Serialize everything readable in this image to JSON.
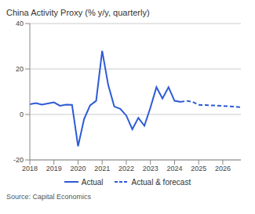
{
  "chart_data": {
    "type": "line",
    "title": "China Activity Proxy (% y/y, quarterly)",
    "source": "Source: Capital Economics",
    "x": [
      2018,
      2018.25,
      2018.5,
      2018.75,
      2019,
      2019.25,
      2019.5,
      2019.75,
      2020,
      2020.25,
      2020.5,
      2020.75,
      2021,
      2021.25,
      2021.5,
      2021.75,
      2022,
      2022.25,
      2022.5,
      2022.75,
      2023,
      2023.25,
      2023.5,
      2023.75,
      2024,
      2024.25,
      2024.5,
      2024.75,
      2025,
      2025.25,
      2025.5,
      2025.75,
      2026,
      2026.25,
      2026.5,
      2026.75
    ],
    "series": [
      {
        "name": "Actual",
        "color": "#2d5bd6",
        "line_style": "solid",
        "values": [
          4.5,
          5,
          4.3,
          4.8,
          5.3,
          3.8,
          4.3,
          4.2,
          -14,
          -2,
          4,
          6,
          28,
          13,
          3.5,
          2.5,
          -0.5,
          -6.5,
          -1.5,
          -5,
          3,
          12,
          7,
          12,
          6,
          5.5,
          null,
          null,
          null,
          null,
          null,
          null,
          null,
          null,
          null,
          null
        ]
      },
      {
        "name": "Actual & forecast",
        "color": "#2d5bd6",
        "line_style": "dashed",
        "values": [
          null,
          null,
          null,
          null,
          null,
          null,
          null,
          null,
          null,
          null,
          null,
          null,
          null,
          null,
          null,
          null,
          null,
          null,
          null,
          null,
          null,
          null,
          null,
          null,
          null,
          5.5,
          6,
          5.5,
          4.2,
          4.1,
          4,
          3.9,
          3.7,
          3.6,
          3.4,
          3.2
        ]
      }
    ],
    "xlim": [
      2018,
      2026.75
    ],
    "xticks": [
      2018,
      2019,
      2020,
      2021,
      2022,
      2023,
      2024,
      2025,
      2026
    ],
    "ylim": [
      -20,
      40
    ],
    "yticks": [
      -20,
      0,
      20,
      40
    ],
    "grid": true,
    "legend": "bottom"
  }
}
